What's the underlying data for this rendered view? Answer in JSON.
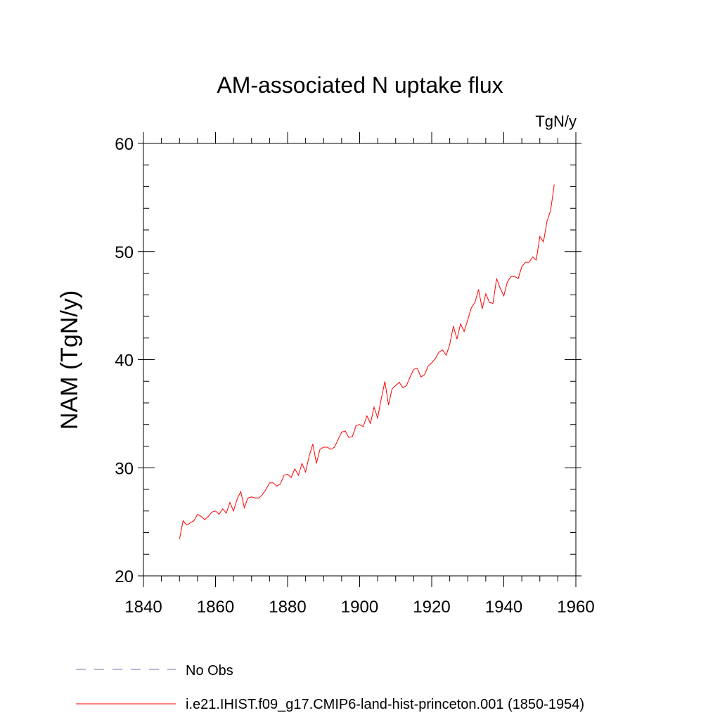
{
  "chart_data": {
    "type": "line",
    "title": "AM-associated N uptake flux",
    "units": "TgN/y",
    "ylabel": "NAM  (TgN/y)",
    "xlabel": "",
    "xlim": [
      1840,
      1960
    ],
    "ylim": [
      20,
      60
    ],
    "x_ticks": [
      1840,
      1860,
      1880,
      1900,
      1920,
      1940,
      1960
    ],
    "y_ticks": [
      20,
      30,
      40,
      50,
      60
    ],
    "x_tick_labels": [
      "1840",
      "1860",
      "1880",
      "1900",
      "1920",
      "1940",
      "1960"
    ],
    "y_tick_labels": [
      "20",
      "30",
      "40",
      "50",
      "60"
    ],
    "grid": false,
    "legend_position": "bottom",
    "legend": [
      {
        "label": "No Obs",
        "style": "dashed",
        "color": "#7b6fa8"
      },
      {
        "label": "i.e21.IHIST.f09_g17.CMIP6-land-hist-princeton.001 (1850-1954)",
        "style": "solid",
        "color": "#ff0000"
      }
    ],
    "series": [
      {
        "name": "i.e21.IHIST.f09_g17.CMIP6-land-hist-princeton.001 (1850-1954)",
        "color": "#ff0000",
        "x": [
          1850,
          1851,
          1852,
          1853,
          1854,
          1855,
          1856,
          1857,
          1858,
          1859,
          1860,
          1861,
          1862,
          1863,
          1864,
          1865,
          1866,
          1867,
          1868,
          1869,
          1870,
          1871,
          1872,
          1873,
          1874,
          1875,
          1876,
          1877,
          1878,
          1879,
          1880,
          1881,
          1882,
          1883,
          1884,
          1885,
          1886,
          1887,
          1888,
          1889,
          1890,
          1891,
          1892,
          1893,
          1894,
          1895,
          1896,
          1897,
          1898,
          1899,
          1900,
          1901,
          1902,
          1903,
          1904,
          1905,
          1906,
          1907,
          1908,
          1909,
          1910,
          1911,
          1912,
          1913,
          1914,
          1915,
          1916,
          1917,
          1918,
          1919,
          1920,
          1921,
          1922,
          1923,
          1924,
          1925,
          1926,
          1927,
          1928,
          1929,
          1930,
          1931,
          1932,
          1933,
          1934,
          1935,
          1936,
          1937,
          1938,
          1939,
          1940,
          1941,
          1942,
          1943,
          1944,
          1945,
          1946,
          1947,
          1948,
          1949,
          1950,
          1951,
          1952,
          1953,
          1954
        ],
        "y": [
          23.4,
          25.1,
          24.7,
          24.9,
          25.1,
          25.7,
          25.5,
          25.2,
          25.5,
          25.9,
          26.0,
          25.7,
          26.2,
          25.8,
          26.8,
          26.0,
          27.1,
          27.8,
          26.3,
          27.2,
          27.3,
          27.2,
          27.2,
          27.5,
          28.0,
          28.6,
          28.6,
          28.3,
          28.5,
          29.3,
          29.4,
          29.1,
          29.9,
          29.3,
          30.4,
          29.6,
          31.1,
          32.2,
          30.4,
          31.7,
          31.9,
          31.9,
          31.7,
          31.9,
          32.6,
          33.3,
          33.4,
          32.8,
          32.9,
          33.9,
          34.0,
          33.8,
          34.8,
          34.1,
          35.6,
          34.6,
          36.4,
          38.0,
          35.8,
          37.3,
          37.6,
          37.9,
          37.4,
          37.6,
          38.4,
          39.1,
          39.2,
          38.4,
          38.6,
          39.4,
          39.7,
          40.1,
          40.7,
          40.9,
          40.4,
          41.4,
          43.1,
          41.9,
          43.3,
          42.6,
          43.7,
          44.8,
          45.3,
          46.5,
          44.7,
          46.1,
          45.3,
          45.2,
          47.5,
          46.6,
          45.9,
          47.2,
          47.7,
          47.7,
          47.5,
          48.6,
          49.0,
          49.0,
          49.5,
          49.2,
          51.4,
          50.9,
          52.8,
          53.8,
          56.2
        ]
      }
    ]
  }
}
